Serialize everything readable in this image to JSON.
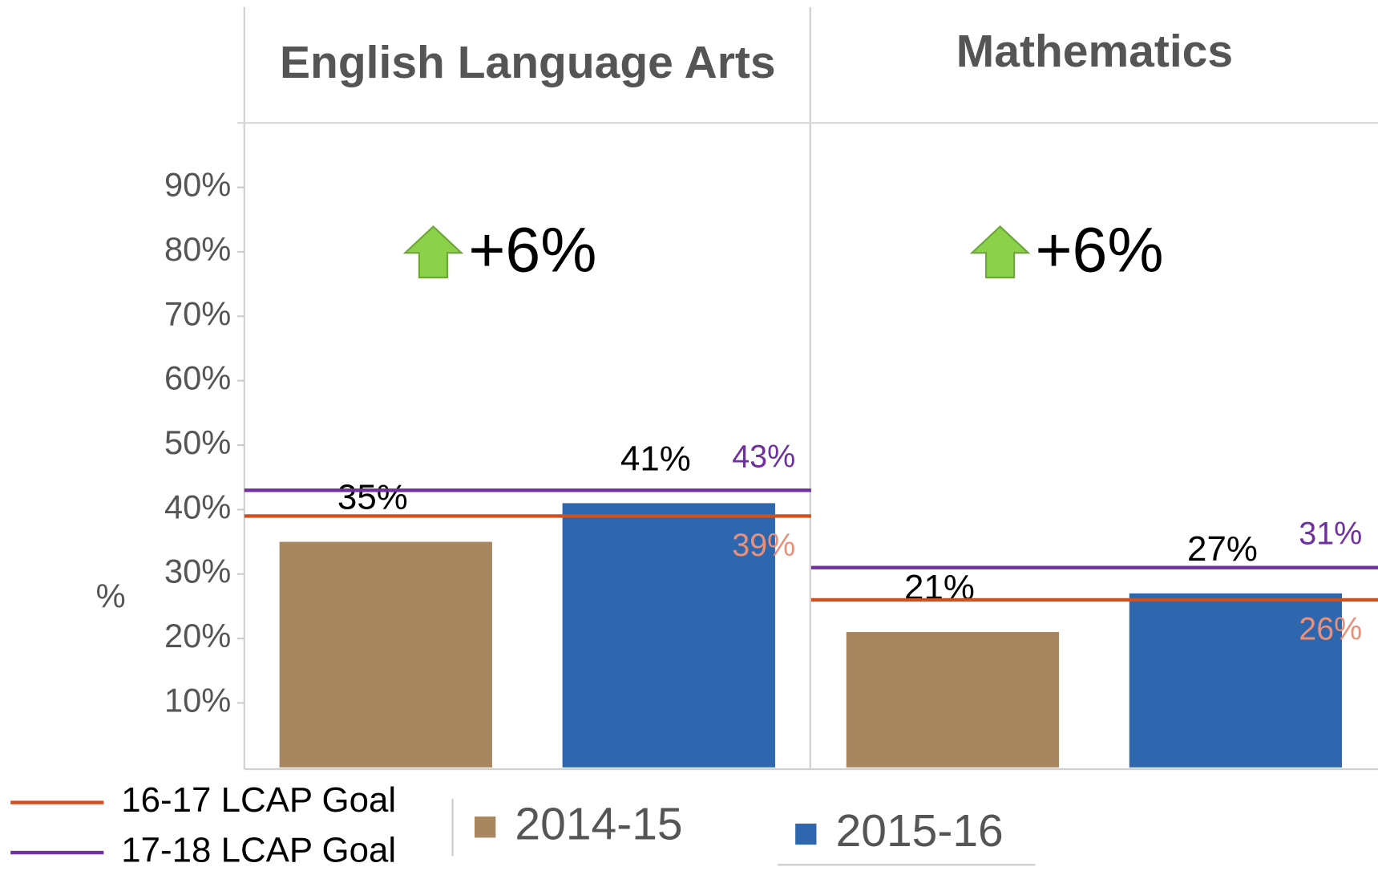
{
  "chart_data": {
    "type": "bar",
    "ylabel": "%",
    "ylim": [
      0,
      100
    ],
    "yticks": [
      {
        "value": 10,
        "label": "10%"
      },
      {
        "value": 20,
        "label": "20%"
      },
      {
        "value": 30,
        "label": "30%"
      },
      {
        "value": 40,
        "label": "40%"
      },
      {
        "value": 50,
        "label": "50%"
      },
      {
        "value": 60,
        "label": "60%"
      },
      {
        "value": 70,
        "label": "70%"
      },
      {
        "value": 80,
        "label": "80%"
      },
      {
        "value": 90,
        "label": "90%"
      }
    ],
    "categories": [
      "English Language Arts",
      "Mathematics"
    ],
    "annotations": [
      "+6%",
      "+6%"
    ],
    "series": [
      {
        "name": "2014-15",
        "color": "#a8865f",
        "values": [
          35,
          21
        ],
        "value_labels": [
          "35%",
          "21%"
        ]
      },
      {
        "name": "2015-16",
        "color": "#2e67ad",
        "values": [
          41,
          27
        ],
        "value_labels": [
          "41%",
          "27%"
        ]
      }
    ],
    "goal_lines": [
      {
        "name": "16-17 LCAP Goal",
        "color": "#d24f1e",
        "label_color": "#e8907a",
        "values": [
          39,
          26
        ],
        "value_labels": [
          "39%",
          "26%"
        ]
      },
      {
        "name": "17-18 LCAP Goal",
        "color": "#7030a0",
        "label_color": "#7030a0",
        "values": [
          43,
          31
        ],
        "value_labels": [
          "43%",
          "31%"
        ]
      }
    ]
  }
}
